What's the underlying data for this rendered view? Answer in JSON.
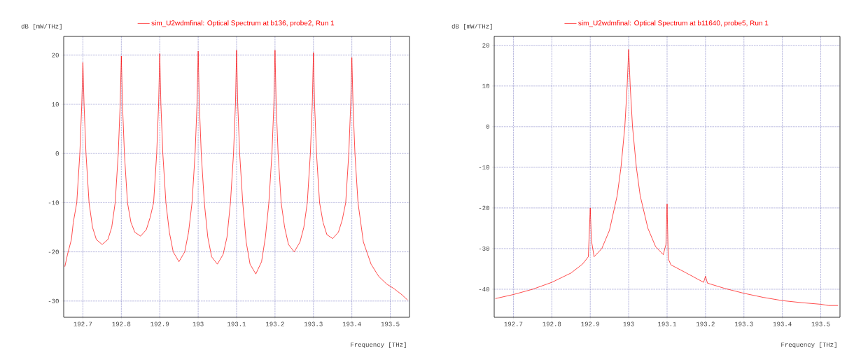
{
  "chart_data": [
    {
      "type": "line",
      "xlabel": "Frequency [THz]",
      "ylabel": "dB [mW/THz]",
      "legend": "top",
      "grid": true,
      "marker": "none",
      "line_style": "solid",
      "xlim": [
        192.65,
        193.55
      ],
      "ylim": [
        -33.3,
        23.8
      ],
      "xticks": [
        192.7,
        192.8,
        192.9,
        {
          "value": 193,
          "label": "193"
        },
        193.1,
        193.2,
        193.3,
        193.4,
        193.5
      ],
      "yticks": [
        -30,
        -20,
        -10,
        0,
        10,
        20
      ],
      "series": [
        {
          "name": "sim_U2wdmfinal: Optical Spectrum at b136, probe2, Run 1",
          "color": "#ff0000",
          "x": [
            192.653,
            192.66,
            192.67,
            192.675,
            192.684,
            192.692,
            192.697,
            192.7,
            192.703,
            192.708,
            192.716,
            192.725,
            192.735,
            192.75,
            192.765,
            192.775,
            192.784,
            192.792,
            192.797,
            192.8,
            192.803,
            192.808,
            192.816,
            192.825,
            192.835,
            192.85,
            192.865,
            192.875,
            192.884,
            192.892,
            192.897,
            192.9,
            192.903,
            192.908,
            192.916,
            192.925,
            192.935,
            192.95,
            192.965,
            192.975,
            192.984,
            192.992,
            192.997,
            193.0,
            193.003,
            193.008,
            193.016,
            193.025,
            193.035,
            193.05,
            193.065,
            193.075,
            193.084,
            193.092,
            193.097,
            193.1,
            193.103,
            193.108,
            193.116,
            193.125,
            193.135,
            193.15,
            193.165,
            193.175,
            193.184,
            193.192,
            193.197,
            193.2,
            193.203,
            193.208,
            193.216,
            193.225,
            193.235,
            193.25,
            193.265,
            193.275,
            193.284,
            193.292,
            193.297,
            193.3,
            193.303,
            193.308,
            193.316,
            193.325,
            193.335,
            193.35,
            193.365,
            193.375,
            193.384,
            193.392,
            193.397,
            193.4,
            193.403,
            193.408,
            193.416,
            193.43,
            193.45,
            193.47,
            193.49,
            193.51,
            193.53,
            193.545
          ],
          "values": [
            -23,
            -20.5,
            -17.5,
            -14,
            -10,
            0,
            10,
            18.5,
            10,
            0,
            -10,
            -15,
            -17.5,
            -18.5,
            -17.5,
            -15,
            -10,
            0,
            10,
            19.8,
            10,
            0,
            -10,
            -14,
            -16,
            -16.8,
            -15.5,
            -13,
            -10,
            0,
            10,
            20.3,
            10,
            0,
            -10,
            -16,
            -20,
            -22,
            -20,
            -16,
            -10,
            0,
            10,
            20.8,
            10,
            0,
            -10,
            -17,
            -21,
            -22.5,
            -20.5,
            -17,
            -10,
            0,
            10,
            21,
            10,
            0,
            -10,
            -18,
            -22.5,
            -24.5,
            -22,
            -17,
            -10,
            0,
            10,
            21,
            10,
            0,
            -10,
            -15,
            -18.5,
            -20,
            -18,
            -15,
            -10,
            0,
            10,
            20.5,
            10,
            0,
            -10,
            -14,
            -16.5,
            -17.3,
            -16,
            -13.5,
            -10,
            0,
            10,
            19.5,
            10,
            0,
            -10,
            -18,
            -22.5,
            -25,
            -26.5,
            -27.5,
            -28.7,
            -29.8
          ]
        }
      ]
    },
    {
      "type": "line",
      "xlabel": "Frequency [THz]",
      "ylabel": "dB [mW/THz]",
      "legend": "top",
      "grid": true,
      "marker": "none",
      "line_style": "solid",
      "xlim": [
        192.65,
        193.55
      ],
      "ylim": [
        -46.9,
        22.2
      ],
      "xticks": [
        192.7,
        192.8,
        192.9,
        {
          "value": 193,
          "label": "193"
        },
        193.1,
        193.2,
        193.3,
        193.4,
        193.5
      ],
      "yticks": [
        -40,
        -30,
        -20,
        -10,
        0,
        10,
        20
      ],
      "series": [
        {
          "name": "sim_U2wdmfinal: Optical Spectrum at b11640, probe5, Run 1",
          "color": "#ff0000",
          "x": [
            192.653,
            192.7,
            192.75,
            192.8,
            192.85,
            192.88,
            192.895,
            192.9,
            192.903,
            192.91,
            192.93,
            192.95,
            192.97,
            192.98,
            192.99,
            192.996,
            193.0,
            193.004,
            193.01,
            193.02,
            193.03,
            193.05,
            193.07,
            193.09,
            193.097,
            193.1,
            193.103,
            193.11,
            193.15,
            193.195,
            193.2,
            193.205,
            193.25,
            193.3,
            193.35,
            193.4,
            193.45,
            193.5,
            193.52,
            193.545
          ],
          "values": [
            -42.3,
            -41.3,
            -40,
            -38.3,
            -36,
            -33.8,
            -32,
            -20,
            -28,
            -32,
            -30,
            -25.5,
            -17,
            -10,
            0,
            10,
            19,
            10,
            0,
            -10,
            -17,
            -25,
            -29.5,
            -31.5,
            -29,
            -19,
            -32.5,
            -34,
            -36,
            -38.3,
            -36.8,
            -38.5,
            -39.8,
            -41,
            -42,
            -42.8,
            -43.3,
            -43.7,
            -44,
            -44
          ]
        }
      ]
    }
  ]
}
